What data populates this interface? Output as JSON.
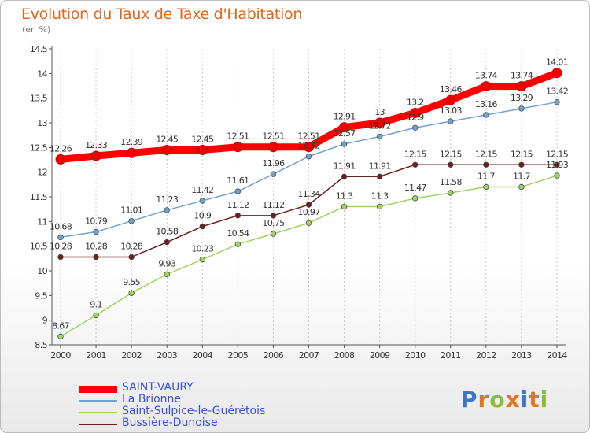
{
  "header": {
    "title": "Evolution du Taux de Taxe d'Habitation",
    "subtitle": "(en %)"
  },
  "logo": {
    "text": "Proxiti",
    "colors": [
      "#3a78c4",
      "#e8731c",
      "#8bbe2d",
      "#e8731c",
      "#3a78c4",
      "#e8731c",
      "#8bbe2d"
    ]
  },
  "chart_data": {
    "type": "line",
    "title": "Evolution du Taux de Taxe d'Habitation",
    "ylabel": "(en %)",
    "xlabel": "",
    "ylim": [
      8.5,
      14.5
    ],
    "yticks": [
      8.5,
      9,
      9.5,
      10,
      10.5,
      11,
      11.5,
      12,
      12.5,
      13,
      13.5,
      14,
      14.5
    ],
    "grid": "vertical dashed lines at each year",
    "legend_position": "bottom-left",
    "x": [
      "2000",
      "2001",
      "2002",
      "2003",
      "2004",
      "2005",
      "2006",
      "2007",
      "2008",
      "2009",
      "2010",
      "2011",
      "2012",
      "2013",
      "2014"
    ],
    "series": [
      {
        "name": "SAINT-VAURY",
        "color": "#ff0000",
        "values": [
          12.26,
          12.33,
          12.39,
          12.45,
          12.45,
          12.51,
          12.51,
          12.51,
          12.91,
          13,
          13.2,
          13.46,
          13.74,
          13.74,
          14.01
        ]
      },
      {
        "name": "La Brionne",
        "color": "#6fa2cf",
        "values": [
          10.68,
          10.79,
          11.01,
          11.23,
          11.42,
          11.61,
          11.96,
          12.32,
          12.57,
          12.72,
          12.9,
          13.03,
          13.16,
          13.29,
          13.42
        ]
      },
      {
        "name": "Saint-Sulpice-le-Guérétois",
        "color": "#9fd45f",
        "values": [
          8.67,
          9.1,
          9.55,
          9.93,
          10.23,
          10.54,
          10.75,
          10.97,
          11.3,
          11.3,
          11.47,
          11.58,
          11.7,
          11.7,
          11.93
        ]
      },
      {
        "name": "Bussière-Dunoise",
        "color": "#6b1f1f",
        "values": [
          10.28,
          10.28,
          10.28,
          10.58,
          10.9,
          11.12,
          11.12,
          11.34,
          11.91,
          11.91,
          12.15,
          12.15,
          12.15,
          12.15,
          12.15
        ]
      }
    ]
  }
}
